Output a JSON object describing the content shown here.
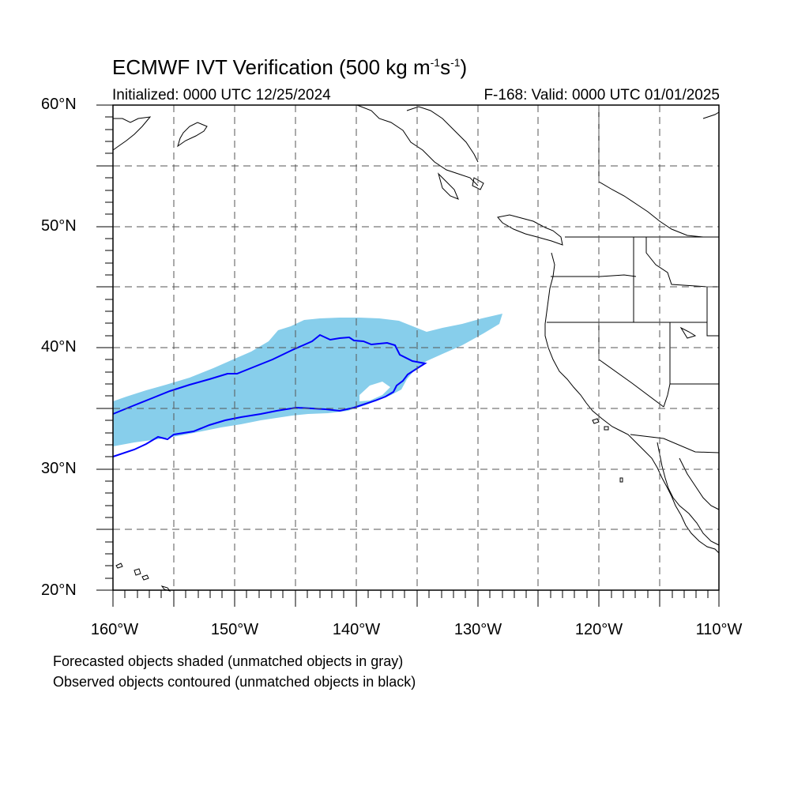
{
  "title": {
    "main": "ECMWF IVT Verification (500 kg m",
    "exp1": "-1",
    "mid": "s",
    "exp2": "-1",
    "close": ")"
  },
  "subtitle": {
    "initialized": "Initialized: 0000 UTC 12/25/2024",
    "valid": "F-168: Valid: 0000 UTC 01/01/2025"
  },
  "map": {
    "projection": "cylindrical equidistant",
    "lon_range": [
      -160,
      -110
    ],
    "lat_range": [
      20,
      60
    ],
    "grid_dashed": true,
    "grid_step_deg": 5,
    "lat_labels": [
      "60°N",
      "50°N",
      "40°N",
      "30°N",
      "20°N"
    ],
    "lon_labels": [
      "160°W",
      "150°W",
      "140°W",
      "130°W",
      "120°W",
      "110°W"
    ],
    "forecast_object_color": "#87ceeb",
    "observed_contour_color": "#0000ff",
    "coastline_color": "#000000"
  },
  "legend": {
    "line1": "Forecasted objects shaded (unmatched objects in gray)",
    "line2": "Observed objects contoured (unmatched objects in black)"
  }
}
